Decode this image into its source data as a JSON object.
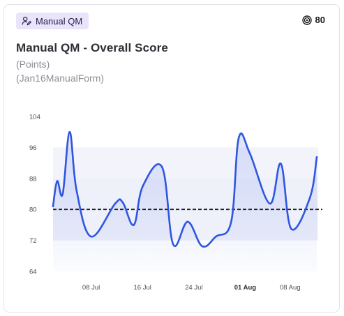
{
  "header": {
    "badge_label": "Manual QM",
    "badge_icon": "user-edit-icon",
    "target_icon": "target-icon",
    "target_value": "80"
  },
  "title": "Manual QM - Overall Score",
  "subtitle_unit": "(Points)",
  "subtitle_form": "(Jan16ManualForm)",
  "colors": {
    "line": "#2f56e0",
    "area": "#e8ecfb",
    "band": "#eef0fa",
    "target_line": "#1b1b1f",
    "badge_bg": "#e9e3fb"
  },
  "chart_data": {
    "type": "area",
    "ylim": [
      64,
      104
    ],
    "yticks": [
      64,
      72,
      80,
      88,
      96,
      104
    ],
    "xlim": [
      0,
      34
    ],
    "xticks": [
      {
        "label": "08 Jul",
        "x": 3,
        "bold": false
      },
      {
        "label": "16 Jul",
        "x": 11,
        "bold": false
      },
      {
        "label": "24 Jul",
        "x": 19,
        "bold": false
      },
      {
        "label": "01 Aug",
        "x": 27,
        "bold": true
      },
      {
        "label": "08 Aug",
        "x": 34,
        "bold": false
      }
    ],
    "target": 80,
    "band": [
      72,
      88
    ],
    "band_upper": [
      88,
      96
    ],
    "series": [
      {
        "x": [
          0.0,
          0.6,
          1.4,
          2.4,
          3.4,
          5.5,
          9.0,
          10.1,
          11.7,
          13.0,
          15.8,
          17.4,
          19.5,
          21.6,
          23.6,
          25.8,
          26.9,
          28.5,
          31.4,
          33.0,
          34.5,
          37.2,
          38.2
        ],
        "y": [
          80.8,
          87.3,
          84.0,
          100.0,
          85.0,
          73.0,
          81.5,
          81.8,
          76.0,
          86.0,
          90.9,
          71.0,
          76.8,
          70.5,
          73.0,
          76.8,
          98.5,
          94.5,
          81.5,
          91.8,
          75.0,
          83.0,
          93.5
        ]
      }
    ]
  }
}
